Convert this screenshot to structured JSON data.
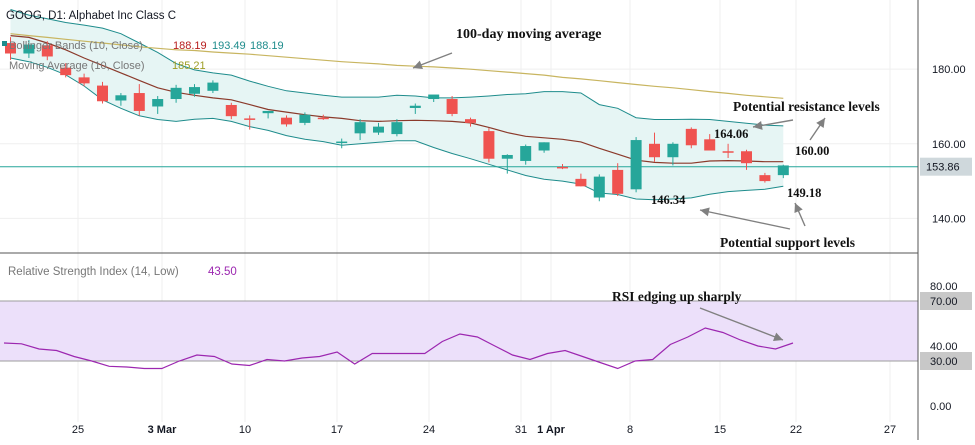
{
  "colors": {
    "up": "#26a69a",
    "down": "#ef5350",
    "bb_fill": "#e6f5f4",
    "bb_line": "#1e8c8c",
    "ma": "#8b3a2b",
    "ma100": "#c8b560",
    "price_line": "#26a69a",
    "rsi": "#9c27b0",
    "rsi_band": "#ece0fa",
    "annot": "#808080",
    "grid": "#efefef",
    "axis_text": "#131722",
    "legend_bb_val": "#b71c1c",
    "legend_ma_val": "#9e9d24"
  },
  "chart_data": [
    {
      "type": "candlestick",
      "title": "GOOG, D1: Alphabet Inc Class C",
      "ylim": [
        131,
        198
      ],
      "yticks": [
        "180.00",
        "160.00",
        "140.00"
      ],
      "xlabels": [
        "25",
        "3 Mar",
        "10",
        "17",
        "24",
        "31",
        "1 Apr",
        "8",
        "15",
        "22",
        "27"
      ],
      "last_price_label": "153.86",
      "legend": [
        {
          "name": "Bollinger Bands (10, Close)",
          "values": [
            "188.19",
            "193.49",
            "188.19"
          ]
        },
        {
          "name": "Moving Average (10, Close)",
          "values": [
            "185.21"
          ]
        }
      ],
      "candles": [
        {
          "o": 187.0,
          "h": 188.6,
          "l": 182.5,
          "c": 184.2
        },
        {
          "o": 184.2,
          "h": 187.8,
          "l": 183.0,
          "c": 186.6
        },
        {
          "o": 186.4,
          "h": 187.5,
          "l": 182.4,
          "c": 183.4
        },
        {
          "o": 180.4,
          "h": 181.6,
          "l": 177.8,
          "c": 178.4
        },
        {
          "o": 177.8,
          "h": 178.8,
          "l": 175.4,
          "c": 176.2
        },
        {
          "o": 175.6,
          "h": 176.6,
          "l": 170.8,
          "c": 171.4
        },
        {
          "o": 171.6,
          "h": 173.6,
          "l": 170.2,
          "c": 173.0
        },
        {
          "o": 173.6,
          "h": 176.0,
          "l": 167.6,
          "c": 168.8
        },
        {
          "o": 170.0,
          "h": 172.8,
          "l": 168.0,
          "c": 172.0
        },
        {
          "o": 172.0,
          "h": 175.8,
          "l": 171.0,
          "c": 175.0
        },
        {
          "o": 173.4,
          "h": 176.0,
          "l": 172.6,
          "c": 175.2
        },
        {
          "o": 174.2,
          "h": 177.0,
          "l": 173.6,
          "c": 176.4
        },
        {
          "o": 170.4,
          "h": 171.0,
          "l": 166.6,
          "c": 167.4
        },
        {
          "o": 166.8,
          "h": 167.6,
          "l": 163.8,
          "c": 166.4
        },
        {
          "o": 168.2,
          "h": 168.8,
          "l": 166.8,
          "c": 168.8
        },
        {
          "o": 167.0,
          "h": 167.6,
          "l": 164.6,
          "c": 165.2
        },
        {
          "o": 165.6,
          "h": 168.4,
          "l": 165.0,
          "c": 167.8
        },
        {
          "o": 167.0,
          "h": 167.8,
          "l": 166.4,
          "c": 166.8
        },
        {
          "o": 160.4,
          "h": 161.4,
          "l": 158.8,
          "c": 160.6
        },
        {
          "o": 162.8,
          "h": 166.6,
          "l": 161.0,
          "c": 165.8
        },
        {
          "o": 163.0,
          "h": 165.6,
          "l": 162.4,
          "c": 164.6
        },
        {
          "o": 162.6,
          "h": 166.6,
          "l": 162.0,
          "c": 165.8
        },
        {
          "o": 169.6,
          "h": 170.8,
          "l": 168.0,
          "c": 170.2
        },
        {
          "o": 172.0,
          "h": 173.0,
          "l": 171.2,
          "c": 173.2
        },
        {
          "o": 172.0,
          "h": 172.8,
          "l": 167.4,
          "c": 168.0
        },
        {
          "o": 166.6,
          "h": 167.0,
          "l": 164.6,
          "c": 165.6
        },
        {
          "o": 163.4,
          "h": 164.2,
          "l": 155.0,
          "c": 156.0
        },
        {
          "o": 156.0,
          "h": 157.2,
          "l": 152.0,
          "c": 157.0
        },
        {
          "o": 155.4,
          "h": 159.8,
          "l": 154.4,
          "c": 159.4
        },
        {
          "o": 158.2,
          "h": 160.4,
          "l": 157.6,
          "c": 160.4
        },
        {
          "o": 153.8,
          "h": 154.6,
          "l": 153.2,
          "c": 153.6
        },
        {
          "o": 150.6,
          "h": 152.0,
          "l": 148.6,
          "c": 148.6
        },
        {
          "o": 145.6,
          "h": 151.8,
          "l": 144.6,
          "c": 151.2
        },
        {
          "o": 153.0,
          "h": 154.8,
          "l": 146.0,
          "c": 146.6
        },
        {
          "o": 147.8,
          "h": 161.8,
          "l": 147.0,
          "c": 161.0
        },
        {
          "o": 160.0,
          "h": 163.0,
          "l": 155.2,
          "c": 156.4
        },
        {
          "o": 156.4,
          "h": 160.4,
          "l": 154.2,
          "c": 160.0
        },
        {
          "o": 164.0,
          "h": 164.4,
          "l": 158.8,
          "c": 159.6
        },
        {
          "o": 161.2,
          "h": 162.6,
          "l": 158.4,
          "c": 158.2
        },
        {
          "o": 158.0,
          "h": 160.0,
          "l": 156.2,
          "c": 157.8
        },
        {
          "o": 158.0,
          "h": 158.4,
          "l": 153.0,
          "c": 154.8
        },
        {
          "o": 151.6,
          "h": 152.2,
          "l": 149.6,
          "c": 150.0
        },
        {
          "o": 151.6,
          "h": 154.4,
          "l": 150.8,
          "c": 154.2
        }
      ],
      "bb_upper": [
        196.0,
        194.5,
        193.5,
        192.5,
        191.8,
        191.0,
        189.5,
        187.0,
        184.5,
        181.5,
        179.8,
        179.0,
        178.4,
        176.8,
        175.4,
        174.2,
        173.6,
        173.0,
        172.5,
        172.5,
        172.5,
        173.0,
        172.8,
        172.3,
        172.3,
        172.5,
        172.8,
        173.2,
        173.4,
        174.0,
        174.0,
        173.6,
        170.5,
        169.5,
        167.0,
        166.5,
        166.5,
        166.6,
        166.5,
        166.0,
        165.5,
        165.0,
        164.8
      ],
      "bb_lower": [
        183.0,
        182.0,
        180.5,
        178.5,
        175.5,
        171.8,
        169.5,
        167.5,
        166.5,
        166.0,
        166.6,
        166.8,
        166.0,
        164.6,
        163.6,
        162.2,
        161.2,
        160.6,
        159.6,
        160.0,
        160.4,
        160.8,
        160.8,
        159.0,
        157.4,
        156.0,
        154.5,
        153.0,
        151.5,
        150.5,
        150.0,
        149.2,
        146.8,
        146.4,
        145.2,
        145.0,
        145.2,
        145.5,
        146.5,
        147.2,
        147.5,
        147.8,
        148.6
      ],
      "ma10": [
        189.0,
        188.5,
        187.0,
        185.2,
        183.0,
        181.0,
        179.0,
        177.0,
        175.0,
        173.8,
        173.0,
        172.3,
        171.8,
        170.5,
        169.2,
        168.5,
        167.8,
        167.2,
        166.8,
        166.2,
        166.0,
        166.2,
        166.3,
        166.2,
        166.0,
        165.6,
        164.4,
        163.0,
        162.0,
        161.6,
        161.2,
        160.5,
        158.8,
        157.2,
        155.6,
        155.0,
        154.8,
        154.8,
        155.4,
        155.5,
        155.4,
        155.2,
        155.2
      ],
      "ma100": [
        189.5,
        189.0,
        188.5,
        188.0,
        187.5,
        187.0,
        186.5,
        186.0,
        185.6,
        185.2,
        185.0,
        184.6,
        184.3,
        184.0,
        183.6,
        183.2,
        182.8,
        182.4,
        182.0,
        181.7,
        181.4,
        181.0,
        180.8,
        180.6,
        180.3,
        180.0,
        179.6,
        179.2,
        178.8,
        178.4,
        177.8,
        177.4,
        176.9,
        176.4,
        175.9,
        175.4,
        175.0,
        174.5,
        174.0,
        173.5,
        173.0,
        172.6,
        172.2
      ]
    },
    {
      "type": "line",
      "title": "Relative Strength Index (14, Low)",
      "title_value": "43.50",
      "ylim": [
        -8,
        100
      ],
      "yticks": [
        "80.00",
        "70.00",
        "40.00",
        "30.00",
        "0.00"
      ],
      "band": [
        30,
        70
      ],
      "rsi": [
        42.0,
        41.5,
        38.0,
        37.0,
        33.0,
        30.0,
        26.5,
        26.0,
        25.0,
        25.0,
        30.0,
        34.0,
        33.0,
        28.0,
        27.0,
        31.0,
        30.0,
        32.0,
        33.0,
        36.0,
        28.0,
        35.0,
        35.0,
        35.0,
        35.0,
        43.0,
        48.0,
        46.0,
        40.0,
        34.0,
        31.0,
        35.0,
        37.0,
        33.0,
        29.0,
        25.0,
        30.0,
        31.0,
        41.0,
        46.0,
        52.0,
        49.0,
        44.0,
        40.0,
        38.0,
        42.0
      ]
    }
  ],
  "annotations": {
    "ma100": "100-day moving average",
    "resistance": "Potential resistance levels",
    "support": "Potential support levels",
    "rsi": "RSI edging up sharply",
    "val_164": "164.06",
    "val_160": "160.00",
    "val_146": "146.34",
    "val_149": "149.18"
  }
}
